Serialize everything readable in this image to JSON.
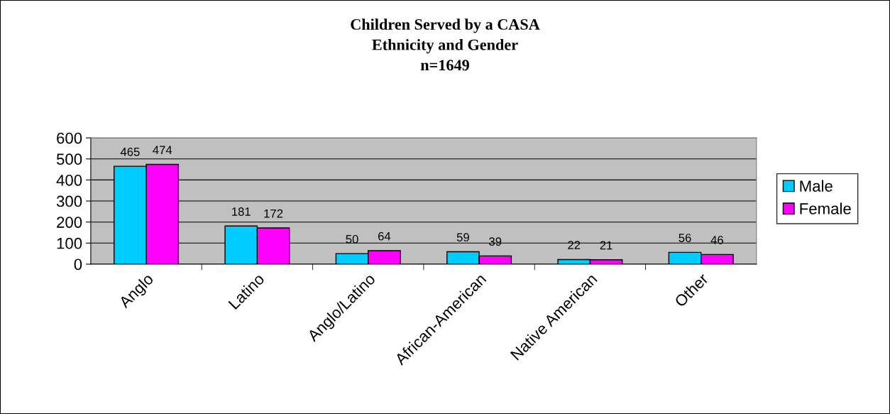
{
  "chart_data": {
    "type": "bar",
    "title": "Children Served by a CASA\nEthnicity and Gender\nn=1649",
    "categories": [
      "Anglo",
      "Latino",
      "Anglo/Latino",
      "African-American",
      "Native American",
      "Other"
    ],
    "series": [
      {
        "name": "Male",
        "color": "#00ccff",
        "values": [
          465,
          181,
          50,
          59,
          22,
          56
        ]
      },
      {
        "name": "Female",
        "color": "#ff00ff",
        "values": [
          474,
          172,
          64,
          39,
          21,
          46
        ]
      }
    ],
    "ylim": [
      0,
      600
    ],
    "yticks": [
      0,
      100,
      200,
      300,
      400,
      500,
      600
    ],
    "grid": "y",
    "legend": "right",
    "data_labels": true
  }
}
